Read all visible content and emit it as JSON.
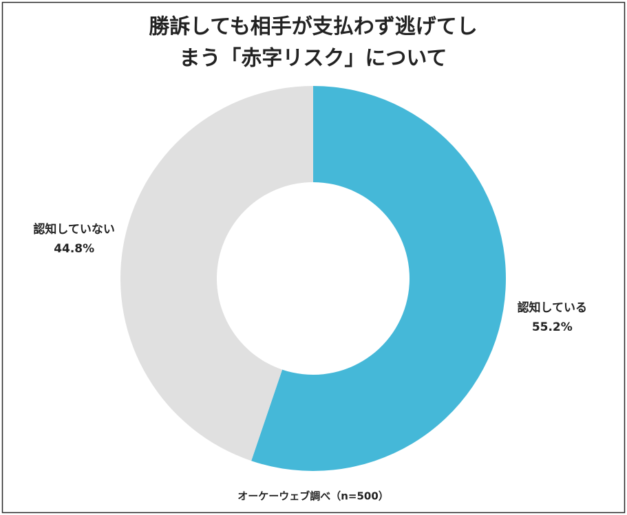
{
  "chart_data": {
    "type": "donut",
    "title": [
      "勝訴しても相手が支払わず逃げてし",
      "まう「赤字リスク」について"
    ],
    "categories": [
      "認知している",
      "認知していない"
    ],
    "values": [
      55.2,
      44.8
    ],
    "value_labels": [
      "55.2%",
      "44.8%"
    ],
    "colors": [
      "#45b8d8",
      "#e0e0e0"
    ],
    "source": "オーケーウェブ調べ（n=500）"
  }
}
